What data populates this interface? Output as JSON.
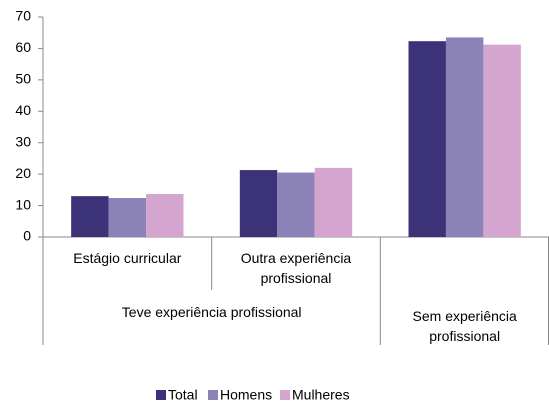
{
  "chart_data": {
    "type": "bar",
    "categories": [
      "Estágio curricular",
      "Outra experiência profissional",
      "Sem experiência profissional"
    ],
    "category_groups": [
      {
        "label": "Teve experiência profissional",
        "categories": [
          0,
          1
        ]
      }
    ],
    "series": [
      {
        "name": "Total",
        "color": "#3c3277",
        "values": [
          13,
          21.3,
          62.3
        ]
      },
      {
        "name": "Homens",
        "color": "#8b82b8",
        "values": [
          12.4,
          20.5,
          63.5
        ]
      },
      {
        "name": "Mulheres",
        "color": "#d4a6cf",
        "values": [
          13.7,
          22,
          61.2
        ]
      }
    ],
    "ylim": [
      0,
      70
    ],
    "yticks": [
      0,
      10,
      20,
      30,
      40,
      50,
      60,
      70
    ],
    "grid": false,
    "legend": "bottom"
  }
}
